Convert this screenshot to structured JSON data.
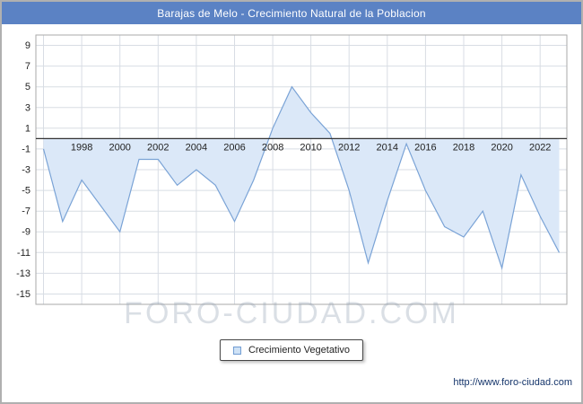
{
  "window": {
    "title": "Barajas de Melo - Crecimiento Natural de la Poblacion"
  },
  "legend": {
    "label": "Crecimiento Vegetativo"
  },
  "watermark": "FORO-CIUDAD.COM",
  "footer": {
    "url": "http://www.foro-ciudad.com"
  },
  "colors": {
    "header_bg": "#5b82c4",
    "grid": "#d8dde4",
    "plot_border": "#aaaaaa",
    "axis": "#333333",
    "area_fill": "#dbe8f8",
    "line": "#7aa3d6",
    "swatch_fill": "#cfe2f6",
    "swatch_border": "#6f9bd2"
  },
  "chart_data": {
    "type": "area",
    "title": "Barajas de Melo - Crecimiento Natural de la Poblacion",
    "xlabel": "",
    "ylabel": "",
    "baseline": 0,
    "xlim": [
      1995.6,
      2023.4
    ],
    "ylim": [
      -16,
      10
    ],
    "yticks": [
      9,
      7,
      5,
      3,
      1,
      -1,
      -3,
      -5,
      -7,
      -9,
      -11,
      -13,
      -15
    ],
    "xticks": [
      1998,
      2000,
      2002,
      2004,
      2006,
      2008,
      2010,
      2012,
      2014,
      2016,
      2018,
      2020,
      2022
    ],
    "xgrid": [
      1996,
      2022,
      2
    ],
    "legend_position": "bottom",
    "series": [
      {
        "name": "Crecimiento Vegetativo",
        "x": [
          1996,
          1997,
          1998,
          1999,
          2000,
          2001,
          2002,
          2003,
          2004,
          2005,
          2006,
          2007,
          2008,
          2009,
          2010,
          2011,
          2012,
          2013,
          2014,
          2015,
          2016,
          2017,
          2018,
          2019,
          2020,
          2021,
          2022,
          2023
        ],
        "values": [
          -1,
          -8,
          -4,
          -6.5,
          -9,
          -2,
          -2,
          -4.5,
          -3,
          -4.5,
          -8,
          -4,
          1,
          5,
          2.5,
          0.5,
          -5,
          -12,
          -6,
          -0.5,
          -5,
          -8.5,
          -9.5,
          -7,
          -12.5,
          -3.5,
          -7.5,
          -11
        ]
      }
    ]
  }
}
